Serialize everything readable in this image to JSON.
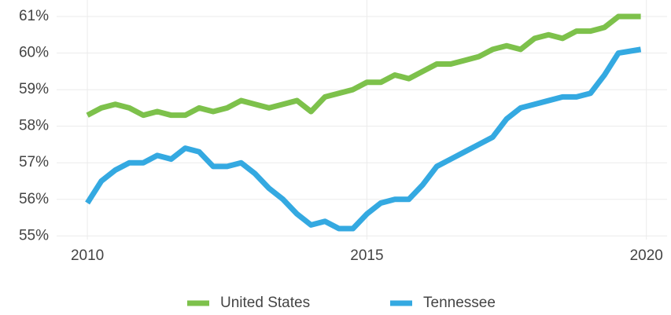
{
  "chart_data": {
    "type": "line",
    "x": [
      2010,
      2010.25,
      2010.5,
      2010.75,
      2011,
      2011.25,
      2011.5,
      2011.75,
      2012,
      2012.25,
      2012.5,
      2012.75,
      2013,
      2013.25,
      2013.5,
      2013.75,
      2014,
      2014.25,
      2014.5,
      2014.75,
      2015,
      2015.25,
      2015.5,
      2015.75,
      2016,
      2016.25,
      2016.5,
      2016.75,
      2017,
      2017.25,
      2017.5,
      2017.75,
      2018,
      2018.25,
      2018.5,
      2018.75,
      2019,
      2019.25,
      2019.5,
      2019.9
    ],
    "series": [
      {
        "name": "United States",
        "color": "#7dc14b",
        "values": [
          58.3,
          58.5,
          58.6,
          58.5,
          58.3,
          58.4,
          58.3,
          58.3,
          58.5,
          58.4,
          58.5,
          58.7,
          58.6,
          58.5,
          58.6,
          58.7,
          58.4,
          58.8,
          58.9,
          59.0,
          59.2,
          59.2,
          59.4,
          59.3,
          59.5,
          59.7,
          59.7,
          59.8,
          59.9,
          60.1,
          60.2,
          60.1,
          60.4,
          60.5,
          60.4,
          60.6,
          60.6,
          60.7,
          61.0,
          61.0
        ]
      },
      {
        "name": "Tennessee",
        "color": "#34a9e1",
        "values": [
          55.9,
          56.5,
          56.8,
          57.0,
          57.0,
          57.2,
          57.1,
          57.4,
          57.3,
          56.9,
          56.9,
          57.0,
          56.7,
          56.3,
          56.0,
          55.6,
          55.3,
          55.4,
          55.2,
          55.2,
          55.6,
          55.9,
          56.0,
          56.0,
          56.4,
          56.9,
          57.1,
          57.3,
          57.5,
          57.7,
          58.2,
          58.5,
          58.6,
          58.7,
          58.8,
          58.8,
          58.9,
          59.4,
          60.0,
          60.1
        ]
      }
    ],
    "xlim": [
      2009.45,
      2020.37
    ],
    "xticks": [
      2010,
      2015,
      2020
    ],
    "ylim": [
      54.9,
      61.45
    ],
    "yticks": [
      {
        "value": 55,
        "label": "55%"
      },
      {
        "value": 56,
        "label": "56%"
      },
      {
        "value": 57,
        "label": "57%"
      },
      {
        "value": 58,
        "label": "58%"
      },
      {
        "value": 59,
        "label": "59%"
      },
      {
        "value": 60,
        "label": "60%"
      },
      {
        "value": 61,
        "label": "61%"
      }
    ],
    "grid": true,
    "legend": "bottom"
  }
}
